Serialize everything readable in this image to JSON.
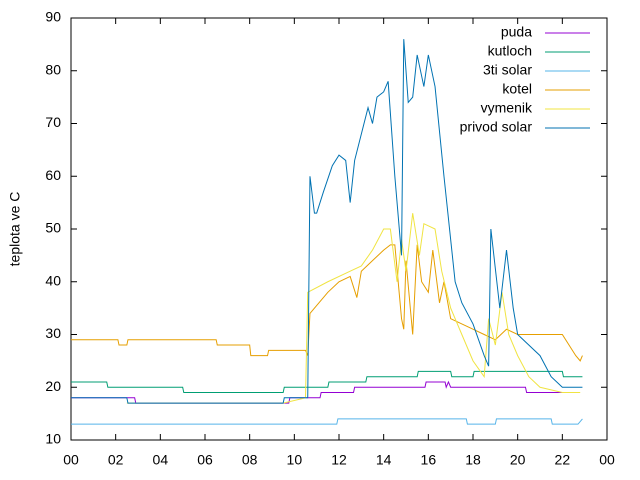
{
  "chart_data": {
    "type": "line",
    "ylabel": "teplota ve C",
    "xlim": [
      0,
      24
    ],
    "xticks": [
      {
        "value": 0,
        "label": "00"
      },
      {
        "value": 2,
        "label": "02"
      },
      {
        "value": 4,
        "label": "04"
      },
      {
        "value": 6,
        "label": "06"
      },
      {
        "value": 8,
        "label": "08"
      },
      10,
      12,
      14,
      16,
      18,
      20,
      22,
      {
        "value": 24,
        "label": "00"
      }
    ],
    "ylim": [
      10,
      90
    ],
    "yticks": [
      10,
      20,
      30,
      40,
      50,
      60,
      70,
      80,
      90
    ],
    "legend": "top-right",
    "series": [
      {
        "name": "puda",
        "color": "#9400d3",
        "x": [
          0,
          2.85,
          2.9,
          9.75,
          9.8,
          11.15,
          11.2,
          12.65,
          12.7,
          15.85,
          15.9,
          16.75,
          16.8,
          16.9,
          17.0,
          20.35,
          20.4,
          22.4
        ],
        "values": [
          18,
          18,
          17,
          17,
          18,
          18,
          19,
          19,
          20,
          20,
          21,
          21,
          20,
          21,
          20,
          20,
          19,
          19
        ]
      },
      {
        "name": "kutloch",
        "color": "#009e73",
        "x": [
          0,
          1.6,
          1.65,
          5.0,
          5.05,
          9.5,
          9.55,
          11.5,
          11.55,
          13.2,
          13.25,
          15.5,
          15.55,
          17.0,
          17.05,
          18.0,
          18.05,
          22.0,
          22.05,
          22.9
        ],
        "values": [
          21,
          21,
          20,
          20,
          19,
          19,
          20,
          20,
          21,
          21,
          22,
          22,
          23,
          23,
          22,
          22,
          23,
          23,
          22,
          22
        ]
      },
      {
        "name": "3ti solar",
        "color": "#56b4e9",
        "x": [
          0,
          11.9,
          11.95,
          17.7,
          17.75,
          19.0,
          19.05,
          21.5,
          21.55,
          22.7,
          22.9
        ],
        "values": [
          13,
          13,
          14,
          14,
          13,
          13,
          14,
          14,
          13,
          13,
          14
        ]
      },
      {
        "name": "kotel",
        "color": "#e69f00",
        "x": [
          0,
          2.1,
          2.15,
          2.5,
          2.55,
          6.5,
          6.55,
          8.0,
          8.05,
          8.8,
          8.85,
          10.5,
          10.6,
          10.7,
          11.5,
          12.0,
          12.5,
          12.8,
          13.0,
          13.5,
          14.0,
          14.3,
          14.5,
          14.8,
          14.9,
          15.0,
          15.3,
          15.5,
          15.7,
          16.0,
          16.2,
          16.5,
          16.7,
          17.0,
          17.5,
          18.0,
          18.5,
          19.0,
          19.5,
          20.0,
          22.0,
          22.6,
          22.8,
          22.9
        ],
        "values": [
          29,
          29,
          28,
          28,
          29,
          29,
          28,
          28,
          26,
          26,
          27,
          27,
          26,
          34,
          38,
          40,
          41,
          37,
          42,
          44,
          46,
          47,
          47,
          33,
          31,
          44,
          30,
          47,
          40,
          38,
          46,
          36,
          40,
          33,
          32,
          31,
          30,
          29,
          31,
          30,
          30,
          26,
          25,
          26
        ]
      },
      {
        "name": "vymenik",
        "color": "#f0e442",
        "x": [
          2.5,
          9.5,
          10.5,
          10.6,
          11.5,
          12.5,
          13.0,
          13.5,
          14.0,
          14.3,
          14.6,
          14.8,
          15.0,
          15.3,
          15.6,
          15.8,
          16.3,
          16.6,
          17.0,
          17.5,
          18.0,
          18.5,
          18.7,
          19.0,
          19.3,
          19.6,
          20.0,
          20.5,
          21.0,
          22.0,
          22.8
        ],
        "values": [
          17,
          17,
          18,
          38,
          40,
          42,
          43,
          46,
          50,
          50,
          40,
          48,
          42,
          53,
          45,
          51,
          50,
          42,
          35,
          30,
          25,
          22,
          33,
          28,
          38,
          30,
          26,
          22,
          20,
          19,
          19
        ]
      },
      {
        "name": "privod solar",
        "color": "#0072b2",
        "x": [
          0,
          2.5,
          2.55,
          9.5,
          9.55,
          10.6,
          10.7,
          10.9,
          11.0,
          11.3,
          11.7,
          12.0,
          12.3,
          12.5,
          12.7,
          13.3,
          13.5,
          13.7,
          14.0,
          14.2,
          14.5,
          14.8,
          14.9,
          15.1,
          15.3,
          15.5,
          15.8,
          16.0,
          16.3,
          16.7,
          17.2,
          17.5,
          18.0,
          18.5,
          18.7,
          18.8,
          19.2,
          19.5,
          19.8,
          20.0,
          21.0,
          21.5,
          22.0,
          22.9
        ],
        "values": [
          18,
          18,
          17,
          17,
          18,
          18,
          60,
          53,
          53,
          57,
          62,
          64,
          63,
          55,
          63,
          73,
          70,
          75,
          76,
          78,
          60,
          45,
          86,
          74,
          75,
          83,
          77,
          83,
          77,
          60,
          40,
          36,
          32,
          26,
          24,
          50,
          35,
          46,
          35,
          30,
          26,
          22,
          20,
          20
        ]
      }
    ]
  }
}
